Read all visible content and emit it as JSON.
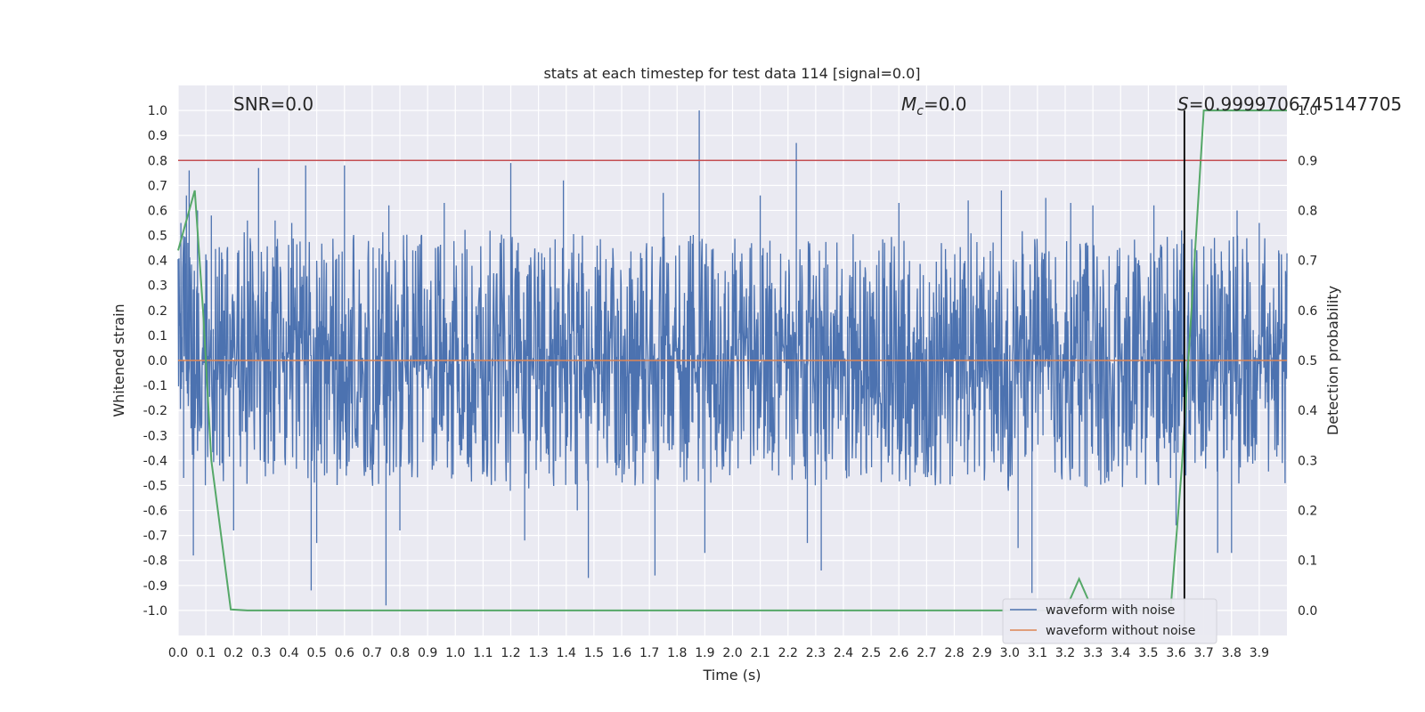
{
  "chart_data": {
    "type": "line",
    "title": "stats at each timestep for test data 114 [signal=0.0]",
    "xlabel": "Time (s)",
    "ylabel": "Whitened strain",
    "y2label": "Detection probability",
    "xlim": [
      0.0,
      4.0
    ],
    "ylim": [
      -1.1,
      1.1
    ],
    "y2lim": [
      -0.05,
      1.05
    ],
    "x_ticks": [
      "0.0",
      "0.1",
      "0.2",
      "0.3",
      "0.4",
      "0.5",
      "0.6",
      "0.7",
      "0.8",
      "0.9",
      "1.0",
      "1.1",
      "1.2",
      "1.3",
      "1.4",
      "1.5",
      "1.6",
      "1.7",
      "1.8",
      "1.9",
      "2.0",
      "2.1",
      "2.2",
      "2.3",
      "2.4",
      "2.5",
      "2.6",
      "2.7",
      "2.8",
      "2.9",
      "3.0",
      "3.1",
      "3.2",
      "3.3",
      "3.4",
      "3.5",
      "3.6",
      "3.7",
      "3.8",
      "3.9"
    ],
    "y_ticks": [
      "1.0",
      "0.9",
      "0.8",
      "0.7",
      "0.6",
      "0.5",
      "0.4",
      "0.3",
      "0.2",
      "0.1",
      "0.0",
      "-0.1",
      "-0.2",
      "-0.3",
      "-0.4",
      "-0.5",
      "-0.6",
      "-0.7",
      "-0.8",
      "-0.9",
      "-1.0"
    ],
    "y2_ticks": [
      "1.0",
      "0.9",
      "0.8",
      "0.7",
      "0.6",
      "0.5",
      "0.4",
      "0.3",
      "0.2",
      "0.1",
      "0.0"
    ],
    "grid": true,
    "legend_position": "bottom-right",
    "series": [
      {
        "name": "waveform with noise",
        "color": "#4c72b0",
        "axis": "left",
        "spikes": [
          [
            0.01,
            0.55
          ],
          [
            0.02,
            -0.47
          ],
          [
            0.03,
            0.66
          ],
          [
            0.04,
            0.76
          ],
          [
            0.055,
            -0.78
          ],
          [
            0.07,
            0.6
          ],
          [
            0.12,
            0.58
          ],
          [
            0.15,
            -0.42
          ],
          [
            0.2,
            -0.68
          ],
          [
            0.25,
            0.56
          ],
          [
            0.29,
            0.77
          ],
          [
            0.35,
            0.56
          ],
          [
            0.41,
            0.55
          ],
          [
            0.46,
            0.78
          ],
          [
            0.48,
            -0.92
          ],
          [
            0.5,
            -0.73
          ],
          [
            0.6,
            0.78
          ],
          [
            0.75,
            -0.98
          ],
          [
            0.76,
            0.62
          ],
          [
            0.8,
            -0.68
          ],
          [
            0.96,
            0.63
          ],
          [
            1.2,
            0.79
          ],
          [
            1.25,
            -0.72
          ],
          [
            1.39,
            0.72
          ],
          [
            1.44,
            -0.6
          ],
          [
            1.48,
            -0.87
          ],
          [
            1.72,
            -0.86
          ],
          [
            1.75,
            0.67
          ],
          [
            1.88,
            1.0
          ],
          [
            1.9,
            -0.77
          ],
          [
            2.1,
            0.66
          ],
          [
            2.23,
            0.87
          ],
          [
            2.27,
            -0.73
          ],
          [
            2.32,
            -0.84
          ],
          [
            2.6,
            0.63
          ],
          [
            2.85,
            0.64
          ],
          [
            2.97,
            0.68
          ],
          [
            3.03,
            -0.75
          ],
          [
            3.08,
            -0.93
          ],
          [
            3.13,
            0.65
          ],
          [
            3.22,
            0.63
          ],
          [
            3.3,
            0.62
          ],
          [
            3.52,
            0.62
          ],
          [
            3.6,
            -0.66
          ],
          [
            3.62,
            0.52
          ],
          [
            3.75,
            -0.77
          ],
          [
            3.8,
            -0.77
          ],
          [
            3.82,
            0.6
          ],
          [
            3.9,
            0.55
          ],
          [
            3.97,
            0.44
          ]
        ],
        "envelope": 0.5
      },
      {
        "name": "waveform without noise",
        "color": "#dd8452",
        "axis": "left",
        "x": [
          0.0,
          4.0
        ],
        "values": [
          0.0,
          0.0
        ]
      },
      {
        "name": "",
        "color": "#55a868",
        "axis": "right",
        "x": [
          0.0,
          0.03,
          0.06,
          0.09,
          0.12,
          0.19,
          0.25,
          3.15,
          3.2,
          3.25,
          3.3,
          3.58,
          3.62,
          3.7,
          4.0
        ],
        "values": [
          0.72,
          0.78,
          0.84,
          0.6,
          0.3,
          0.002,
          0.0,
          0.0,
          0.0,
          0.063,
          0.0,
          0.0,
          0.28,
          1.0,
          1.0
        ]
      }
    ],
    "hlines": [
      {
        "y": 0.8,
        "color": "#c44e52",
        "axis": "left"
      }
    ],
    "vlines": [
      {
        "x": 3.63,
        "color": "#000000"
      }
    ],
    "annotations": [
      {
        "text": "SNR=0.0"
      },
      {
        "text": "M",
        "sub": "c",
        "suffix": "=0.0",
        "italic": true
      },
      {
        "text": "S",
        "suffix": "=0.9999706745147705",
        "italic": true
      }
    ]
  },
  "colors": {
    "plot_bg": "#eaeaf2",
    "grid": "#ffffff"
  }
}
